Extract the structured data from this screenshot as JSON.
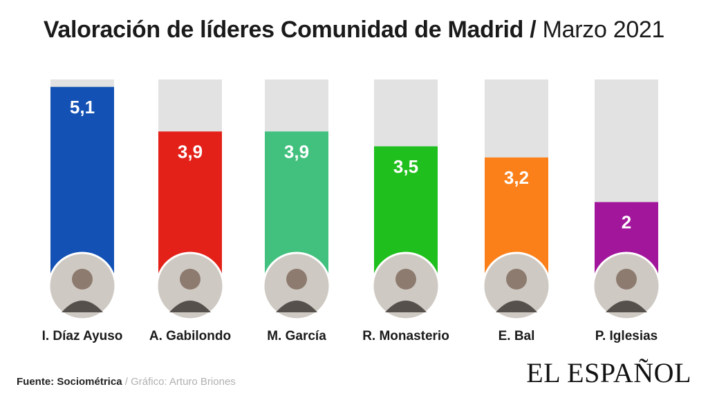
{
  "header": {
    "title_main": "Valoración de líderes Comunidad de Madrid",
    "separator": "/",
    "title_date": "Marzo 2021"
  },
  "chart_data": {
    "type": "bar",
    "categories": [
      "I. Díaz Ayuso",
      "A. Gabilondo",
      "M. García",
      "R. Monasterio",
      "E. Bal",
      "P. Iglesias"
    ],
    "values": [
      5.1,
      3.9,
      3.9,
      3.5,
      3.2,
      2
    ],
    "value_labels": [
      "5,1",
      "3,9",
      "3,9",
      "3,5",
      "3,2",
      "2"
    ],
    "colors": [
      "#1351b4",
      "#e32119",
      "#41c07e",
      "#1fbf1d",
      "#fb801a",
      "#a2169c"
    ],
    "ylim": [
      0,
      5.3
    ]
  },
  "footer": {
    "source": "Fuente: Sociométrica",
    "separator": " / ",
    "credit": "Gráfico: Arturo Briones"
  },
  "brand": {
    "logo": "EL ESPAÑOL"
  }
}
